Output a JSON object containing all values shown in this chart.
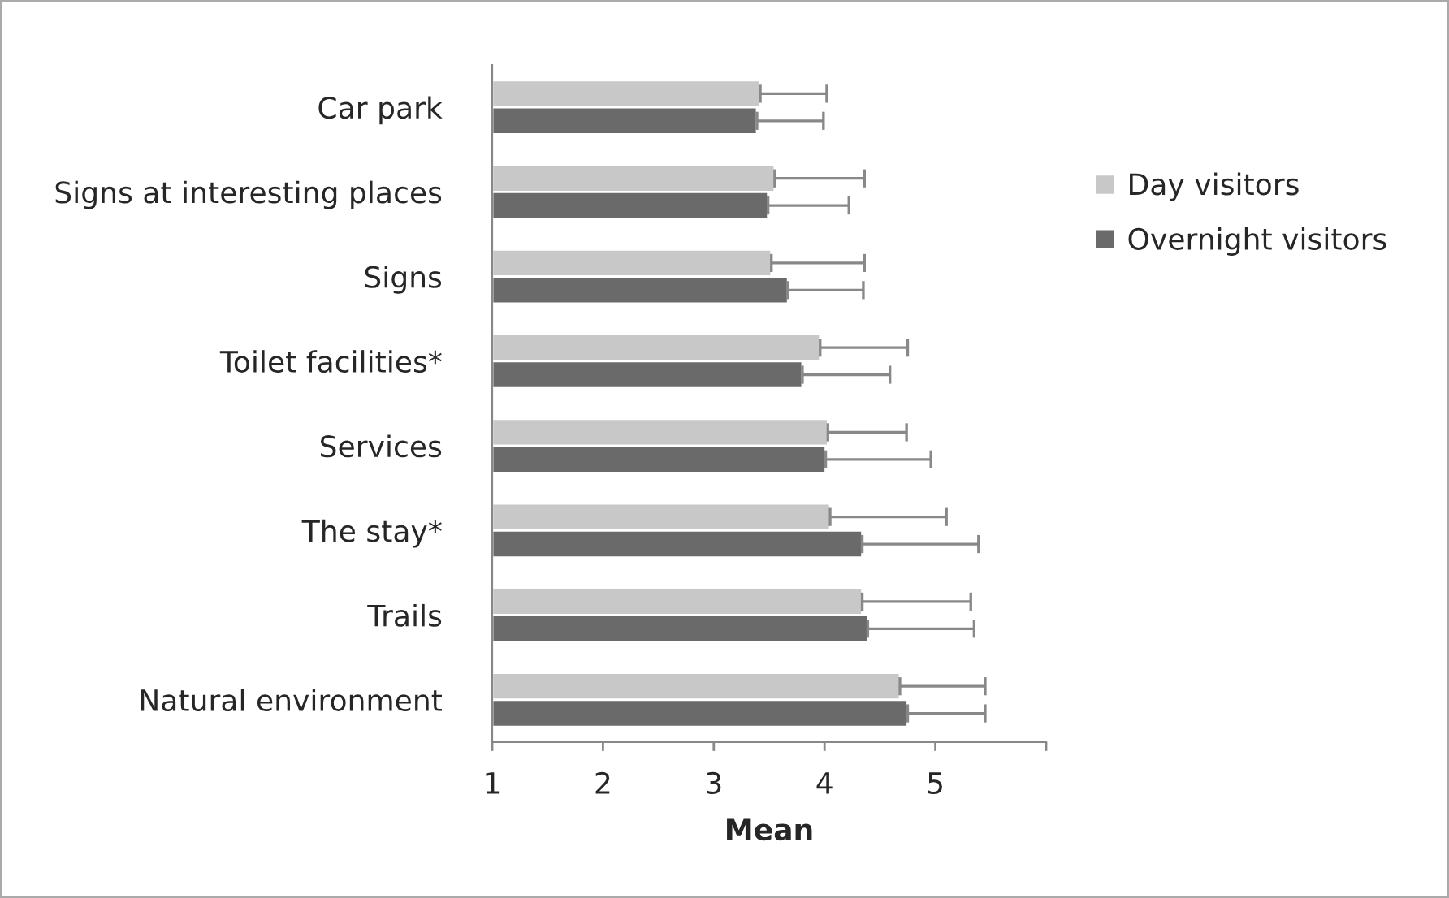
{
  "chart_data": {
    "type": "bar",
    "orientation": "horizontal",
    "xlabel": "Mean",
    "categories": [
      "Car park",
      "Signs at interesting places",
      "Signs",
      "Toilet facilities*",
      "Services",
      "The stay*",
      "Trails",
      "Natural environment"
    ],
    "series": [
      {
        "name": "Day visitors",
        "color": "#c8c8c8",
        "values": [
          3.42,
          3.55,
          3.52,
          3.96,
          4.03,
          4.05,
          4.34,
          4.68
        ],
        "errors": [
          [
            3.42,
            4.02
          ],
          [
            3.55,
            4.36
          ],
          [
            3.52,
            4.36
          ],
          [
            3.96,
            4.75
          ],
          [
            4.03,
            4.74
          ],
          [
            4.05,
            5.1
          ],
          [
            4.34,
            5.32
          ],
          [
            4.68,
            5.45
          ]
        ]
      },
      {
        "name": "Overnight visitors",
        "color": "#6a6a6a",
        "values": [
          3.39,
          3.49,
          3.67,
          3.8,
          4.01,
          4.34,
          4.39,
          4.75
        ],
        "errors": [
          [
            3.39,
            3.99
          ],
          [
            3.49,
            4.22
          ],
          [
            3.67,
            4.35
          ],
          [
            3.8,
            4.59
          ],
          [
            4.01,
            4.96
          ],
          [
            4.34,
            5.39
          ],
          [
            4.39,
            5.35
          ],
          [
            4.75,
            5.45
          ]
        ]
      }
    ],
    "xlim": [
      1,
      6
    ],
    "xticks": [
      1,
      2,
      3,
      4,
      5,
      {
        "value": 6,
        "label": null
      }
    ],
    "grid": false,
    "legend": "right"
  }
}
